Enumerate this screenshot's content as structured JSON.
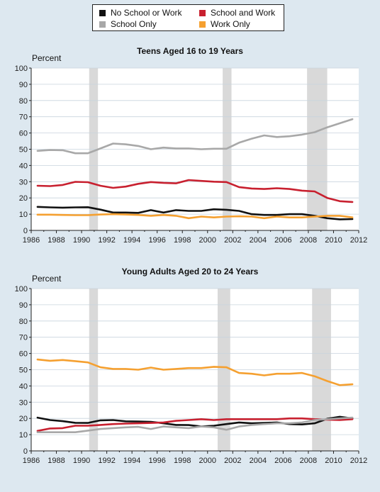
{
  "legend": {
    "items": [
      {
        "label": "No School or Work",
        "color": "#111111"
      },
      {
        "label": "School and Work",
        "color": "#c8202f"
      },
      {
        "label": "School Only",
        "color": "#a8a8a8"
      },
      {
        "label": "Work Only",
        "color": "#f5a030"
      }
    ]
  },
  "colors": {
    "background": "#dde8f0",
    "plot": "#ffffff",
    "recession": "#d9d9d9"
  },
  "chart_data": [
    {
      "type": "line",
      "title": "Teens Aged 16 to 19 Years",
      "ylabel": "Percent",
      "xlabel": "",
      "ylim": [
        0,
        100
      ],
      "xlim": [
        1986,
        2012
      ],
      "yticks": [
        "0",
        "10",
        "20",
        "30",
        "40",
        "50",
        "60",
        "70",
        "80",
        "90",
        "100"
      ],
      "xticks": [
        "1986",
        "1988",
        "1990",
        "1992",
        "1994",
        "1996",
        "1998",
        "2000",
        "2002",
        "2004",
        "2006",
        "2008",
        "2010",
        "2012"
      ],
      "grid": true,
      "recessions": [
        [
          1990.6,
          1991.3
        ],
        [
          2001.2,
          2001.9
        ],
        [
          2007.9,
          2009.5
        ]
      ],
      "x": [
        1986.5,
        1987.5,
        1988.5,
        1989.5,
        1990.5,
        1991.5,
        1992.5,
        1993.5,
        1994.5,
        1995.5,
        1996.5,
        1997.5,
        1998.5,
        1999.5,
        2000.5,
        2001.5,
        2002.5,
        2003.5,
        2004.5,
        2005.5,
        2006.5,
        2007.5,
        2008.5,
        2009.5,
        2010.5,
        2011.5
      ],
      "series": [
        {
          "name": "No School or Work",
          "color": "#111111",
          "values": [
            14.5,
            14.2,
            14.0,
            14.2,
            14.3,
            12.8,
            11.0,
            11.0,
            10.8,
            12.5,
            11.0,
            12.5,
            12.0,
            12.0,
            13.0,
            12.7,
            12.0,
            10.0,
            9.5,
            9.5,
            10.0,
            10.0,
            9.0,
            7.5,
            6.8,
            7.0
          ]
        },
        {
          "name": "School and Work",
          "color": "#c8202f",
          "values": [
            27.5,
            27.3,
            28.0,
            29.9,
            29.7,
            27.5,
            26.2,
            27.0,
            28.7,
            29.8,
            29.3,
            29.0,
            31.0,
            30.5,
            30.0,
            29.8,
            26.7,
            25.8,
            25.5,
            26.0,
            25.5,
            24.5,
            24.0,
            20.0,
            18.0,
            17.5
          ]
        },
        {
          "name": "School Only",
          "color": "#a8a8a8",
          "values": [
            49.0,
            49.5,
            49.4,
            47.5,
            47.5,
            50.5,
            53.5,
            53.0,
            52.0,
            50.0,
            51.0,
            50.5,
            50.5,
            50.0,
            50.3,
            50.3,
            54.0,
            56.5,
            58.5,
            57.5,
            58.0,
            59.0,
            60.5,
            63.5,
            66.0,
            68.5
          ]
        },
        {
          "name": "Work Only",
          "color": "#f5a030",
          "values": [
            9.7,
            9.7,
            9.5,
            9.4,
            9.4,
            9.8,
            10.0,
            9.8,
            9.5,
            9.0,
            9.5,
            9.0,
            7.5,
            8.5,
            8.0,
            8.5,
            8.7,
            8.5,
            7.5,
            8.5,
            8.0,
            8.0,
            8.5,
            9.0,
            9.0,
            8.0
          ]
        }
      ]
    },
    {
      "type": "line",
      "title": "Young Adults Aged 20 to 24 Years",
      "ylabel": "Percent",
      "xlabel": "",
      "ylim": [
        0,
        100
      ],
      "xlim": [
        1986,
        2012
      ],
      "yticks": [
        "0",
        "10",
        "20",
        "30",
        "40",
        "50",
        "60",
        "70",
        "80",
        "90",
        "100"
      ],
      "xticks": [
        "1986",
        "1988",
        "1990",
        "1992",
        "1994",
        "1996",
        "1998",
        "2000",
        "2002",
        "2004",
        "2006",
        "2008",
        "2010",
        "2012"
      ],
      "grid": true,
      "recessions": [
        [
          1990.6,
          1991.3
        ],
        [
          2000.8,
          2001.8
        ],
        [
          2008.3,
          2009.8
        ]
      ],
      "x": [
        1986.5,
        1987.5,
        1988.5,
        1989.5,
        1990.5,
        1991.5,
        1992.5,
        1993.5,
        1994.5,
        1995.5,
        1996.5,
        1997.5,
        1998.5,
        1999.5,
        2000.5,
        2001.5,
        2002.5,
        2003.5,
        2004.5,
        2005.5,
        2006.5,
        2007.5,
        2008.5,
        2009.5,
        2010.5,
        2011.5
      ],
      "series": [
        {
          "name": "No School or Work",
          "color": "#111111",
          "values": [
            20.5,
            19.0,
            18.3,
            17.3,
            17.2,
            18.8,
            19.0,
            18.2,
            18.1,
            17.9,
            17.0,
            16.0,
            15.9,
            15.0,
            15.5,
            16.5,
            17.5,
            17.0,
            17.2,
            17.5,
            16.5,
            16.3,
            17.0,
            19.8,
            21.0,
            20.0
          ]
        },
        {
          "name": "School and Work",
          "color": "#c8202f",
          "values": [
            12.3,
            13.8,
            14.0,
            15.5,
            15.5,
            16.0,
            16.5,
            16.8,
            17.0,
            17.2,
            17.5,
            18.5,
            19.0,
            19.5,
            19.0,
            19.5,
            19.5,
            19.5,
            19.5,
            19.5,
            20.0,
            20.0,
            19.5,
            19.2,
            19.0,
            19.5
          ]
        },
        {
          "name": "School Only",
          "color": "#a8a8a8",
          "values": [
            11.5,
            11.5,
            11.5,
            11.5,
            12.5,
            13.5,
            14.0,
            14.5,
            14.8,
            13.5,
            15.0,
            14.5,
            14.0,
            15.0,
            14.5,
            13.0,
            15.0,
            16.0,
            16.5,
            17.0,
            17.0,
            17.5,
            19.0,
            19.5,
            20.0,
            20.5
          ]
        },
        {
          "name": "Work Only",
          "color": "#f5a030",
          "values": [
            56.3,
            55.5,
            56.0,
            55.3,
            54.5,
            51.5,
            50.5,
            50.5,
            50.0,
            51.3,
            50.0,
            50.5,
            51.0,
            51.0,
            51.8,
            51.5,
            48.0,
            47.5,
            46.5,
            47.5,
            47.5,
            48.0,
            46.0,
            43.0,
            40.5,
            41.0
          ]
        }
      ]
    }
  ]
}
